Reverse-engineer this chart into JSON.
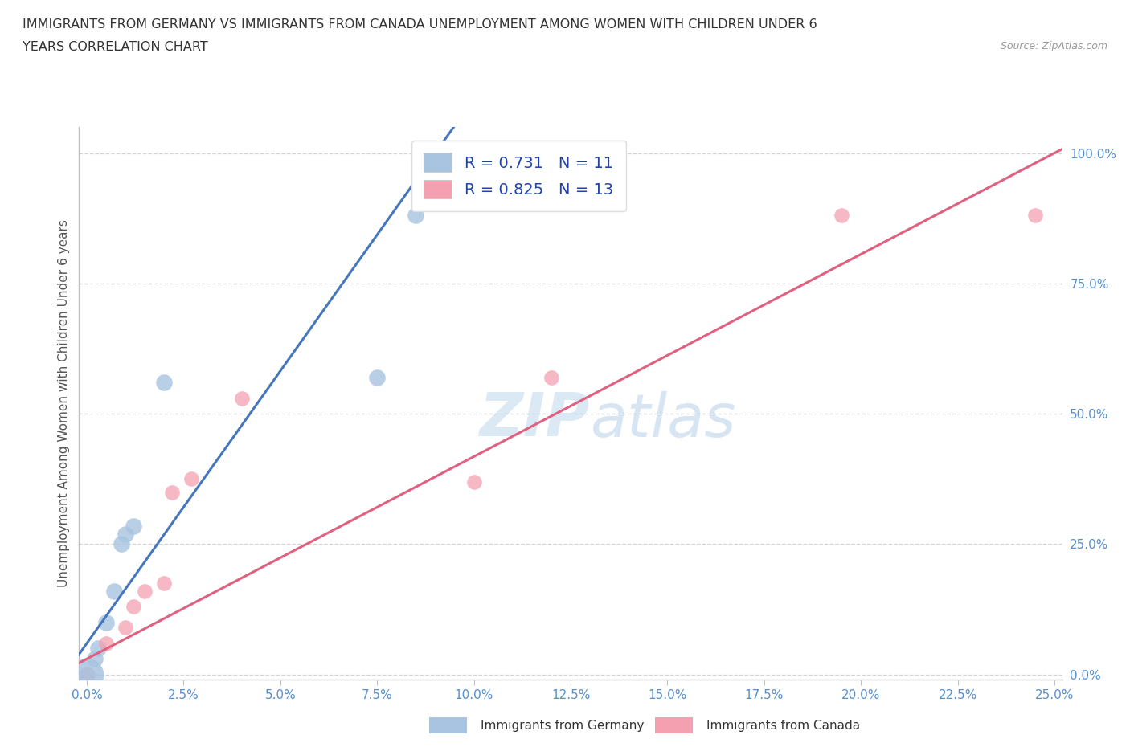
{
  "title_line1": "IMMIGRANTS FROM GERMANY VS IMMIGRANTS FROM CANADA UNEMPLOYMENT AMONG WOMEN WITH CHILDREN UNDER 6",
  "title_line2": "YEARS CORRELATION CHART",
  "source": "Source: ZipAtlas.com",
  "ylabel_label": "Unemployment Among Women with Children Under 6 years",
  "germany_R": 0.731,
  "germany_N": 11,
  "canada_R": 0.825,
  "canada_N": 13,
  "germany_color": "#a8c4e0",
  "canada_color": "#f4a0b0",
  "germany_line_color": "#4477bb",
  "canada_line_color": "#e06080",
  "background_color": "#ffffff",
  "germany_x": [
    0.0,
    0.002,
    0.003,
    0.005,
    0.007,
    0.009,
    0.01,
    0.012,
    0.02,
    0.075,
    0.085
  ],
  "germany_y": [
    0.0,
    0.03,
    0.05,
    0.1,
    0.16,
    0.25,
    0.27,
    0.285,
    0.56,
    0.57,
    0.88
  ],
  "canada_x": [
    0.0,
    0.005,
    0.01,
    0.012,
    0.015,
    0.02,
    0.022,
    0.027,
    0.04,
    0.1,
    0.12,
    0.195,
    0.245
  ],
  "canada_y": [
    0.0,
    0.06,
    0.09,
    0.13,
    0.16,
    0.175,
    0.35,
    0.375,
    0.53,
    0.37,
    0.57,
    0.88,
    0.88
  ],
  "germany_line_x": [
    0.0,
    0.09
  ],
  "germany_line_y": [
    0.06,
    1.0
  ],
  "canada_line_x": [
    0.0,
    0.25
  ],
  "canada_line_y": [
    0.03,
    1.0
  ],
  "xlim": [
    0.0,
    0.25
  ],
  "ylim": [
    0.0,
    1.0
  ],
  "xtick_step": 0.025,
  "ytick_vals": [
    0.0,
    0.25,
    0.5,
    0.75,
    1.0
  ]
}
